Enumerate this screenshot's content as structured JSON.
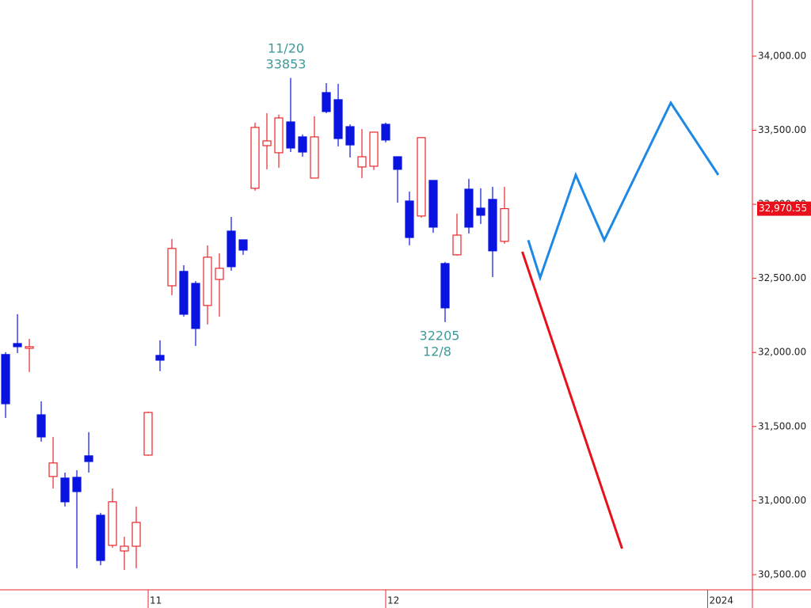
{
  "chart_data": {
    "type": "candlestick",
    "x": [
      0,
      1,
      2,
      3,
      4,
      5,
      6,
      7,
      8,
      9,
      10,
      11,
      12,
      13,
      14,
      15,
      16,
      17,
      18,
      19,
      20,
      21,
      22,
      23,
      24,
      25,
      26,
      27,
      28,
      29,
      30,
      31,
      32,
      33,
      34,
      35,
      36,
      37,
      38,
      39,
      40,
      41,
      42
    ],
    "open": [
      31986,
      32060,
      32028,
      31579,
      31163,
      31152,
      31157,
      31302,
      30901,
      30698,
      30660,
      30692,
      31307,
      31980,
      32450,
      32547,
      32466,
      32317,
      32493,
      32819,
      32760,
      33108,
      33396,
      33348,
      33556,
      33455,
      33177,
      33754,
      33706,
      33524,
      33252,
      33257,
      33540,
      33321,
      33022,
      32921,
      33161,
      32600,
      32659,
      33102,
      32974,
      33033,
      32750
    ],
    "high": [
      32002,
      32258,
      32092,
      31670,
      31430,
      31189,
      31205,
      31462,
      30917,
      31082,
      30756,
      30960,
      31601,
      32082,
      32766,
      32589,
      32482,
      32723,
      32669,
      32915,
      32760,
      33551,
      33615,
      33605,
      33853,
      33471,
      33594,
      33818,
      33813,
      33540,
      33508,
      33487,
      33551,
      33321,
      33086,
      33450,
      33161,
      32611,
      32937,
      33172,
      33108,
      33118,
      33118
    ],
    "low": [
      31558,
      31996,
      31868,
      31398,
      31082,
      30960,
      30543,
      31189,
      30564,
      30682,
      30532,
      30543,
      31302,
      31874,
      32386,
      32242,
      32044,
      32189,
      32242,
      32552,
      32659,
      33092,
      33236,
      33247,
      33353,
      33321,
      33177,
      33615,
      33391,
      33316,
      33177,
      33231,
      33418,
      33011,
      32723,
      32910,
      32808,
      32205,
      32653,
      32803,
      32867,
      32509,
      32734
    ],
    "close": [
      31654,
      32039,
      32039,
      31430,
      31254,
      30992,
      31061,
      31264,
      30596,
      30992,
      30692,
      30853,
      31595,
      31948,
      32702,
      32258,
      32162,
      32643,
      32568,
      32579,
      32691,
      33519,
      33428,
      33583,
      33380,
      33353,
      33455,
      33626,
      33444,
      33401,
      33321,
      33487,
      33434,
      33236,
      32776,
      33450,
      32846,
      32301,
      32792,
      32846,
      32926,
      32686,
      32970.55
    ],
    "up_color": "#e8262b",
    "down_color": "#0a14e0",
    "forecast_lines": [
      {
        "color": "#1e88e5",
        "x": [
          44,
          45,
          48,
          50.4,
          56,
          60
        ],
        "values": [
          32758,
          32504,
          33198,
          32758,
          33685,
          33198
        ]
      },
      {
        "color": "#e8101a",
        "x": [
          43.5,
          51.9
        ],
        "values": [
          32680,
          30676
        ]
      }
    ],
    "annotations": [
      "11/20",
      "33853",
      "32205",
      "12/8"
    ],
    "current_price": {
      "value": 32970.55,
      "label": "32,970.55"
    },
    "xlim": [
      -0.47,
      62.87
    ],
    "ylim": [
      30398,
      34379
    ],
    "xticks": [
      {
        "value": 12,
        "label": "11"
      },
      {
        "value": 32,
        "label": "12"
      },
      {
        "value": 59.1,
        "label": "2024"
      }
    ],
    "yticks": [
      {
        "value": 30500,
        "label": "30,500.00"
      },
      {
        "value": 31000,
        "label": "31,000.00"
      },
      {
        "value": 31500,
        "label": "31,500.00"
      },
      {
        "value": 32000,
        "label": "32,000.00"
      },
      {
        "value": 32500,
        "label": "32,500.00"
      },
      {
        "value": 33000,
        "label": "33,000.00"
      },
      {
        "value": 33500,
        "label": "33,500.00"
      },
      {
        "value": 34000,
        "label": "34,000.00"
      }
    ]
  }
}
